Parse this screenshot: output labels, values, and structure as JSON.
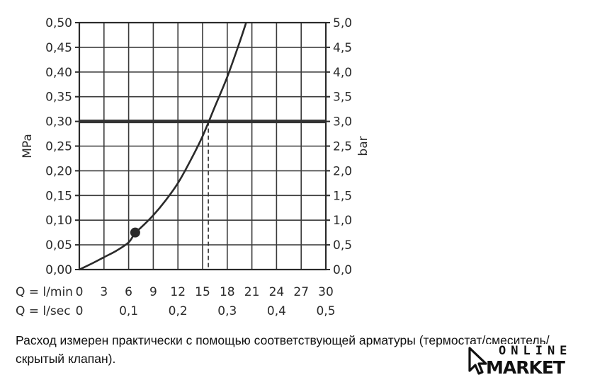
{
  "chart_data": {
    "type": "line",
    "xlabel": "Q = l/min",
    "x2label": "Q = l/sec",
    "ylabel": "MPa",
    "y2label": "bar",
    "xlim": [
      0,
      30
    ],
    "ylim": [
      0,
      0.5
    ],
    "x_ticks": [
      "0",
      "3",
      "6",
      "9",
      "12",
      "15",
      "18",
      "21",
      "24",
      "27",
      "30"
    ],
    "x2_ticks": [
      "0",
      "0,1",
      "0,2",
      "0,3",
      "0,4",
      "0,5"
    ],
    "y_ticks": [
      "0,00",
      "0,05",
      "0,10",
      "0,15",
      "0,20",
      "0,25",
      "0,30",
      "0,35",
      "0,40",
      "0,45",
      "0,50"
    ],
    "y2_ticks": [
      "0,0",
      "0,5",
      "1,0",
      "1,5",
      "2,0",
      "2,5",
      "3,0",
      "3,5",
      "4,0",
      "4,5",
      "5,0"
    ],
    "grid": true,
    "series": [
      {
        "x": [
          0,
          1.5,
          3,
          4.5,
          6,
          6.8,
          7.5,
          9,
          10.5,
          12,
          13.5,
          15,
          16.5,
          18,
          19.5,
          20.3
        ],
        "y": [
          0,
          0.012,
          0.025,
          0.038,
          0.055,
          0.075,
          0.085,
          0.11,
          0.14,
          0.175,
          0.22,
          0.27,
          0.33,
          0.39,
          0.46,
          0.5
        ]
      }
    ],
    "marker_point": {
      "x": 6.8,
      "y": 0.075
    },
    "reference_line": {
      "y": 0.3
    },
    "reference_drop_x": 15.7
  },
  "caption": "Расход измерен практически с помощью соответствующей арматуры (термостат/смеситель/скрытый клапан).",
  "logo": {
    "top_text": "ONLINE",
    "bottom_text": "MARKET"
  }
}
